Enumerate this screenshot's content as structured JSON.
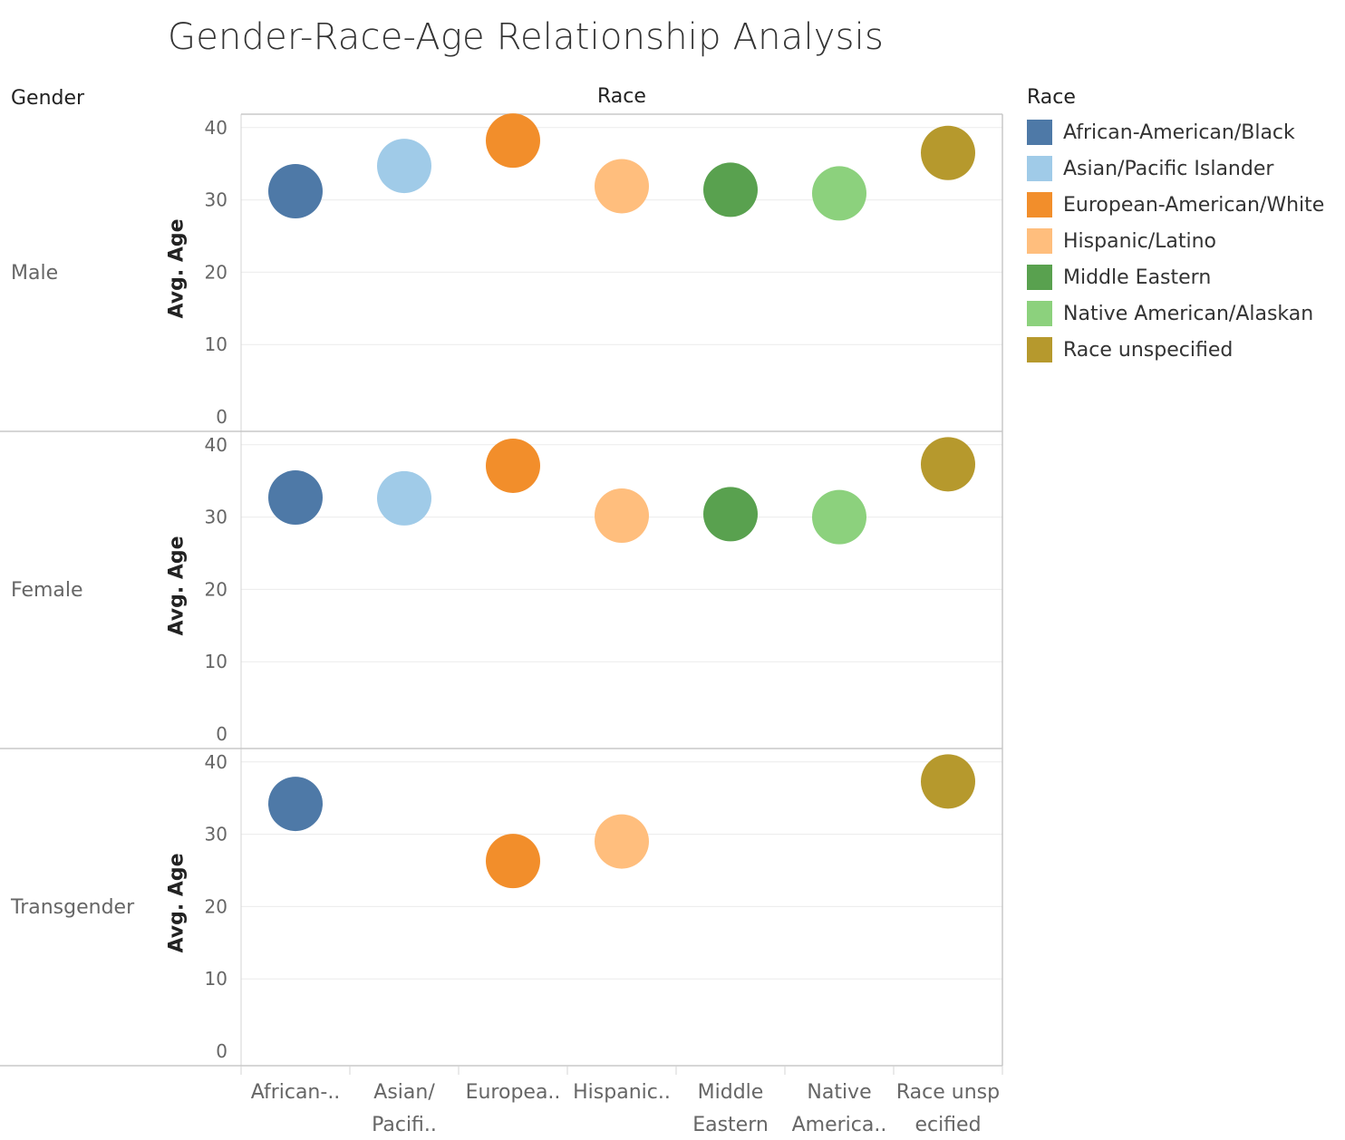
{
  "title": "Gender-Race-Age Relationship Analysis",
  "headers": {
    "rows": "Gender",
    "columns": "Race"
  },
  "legend": {
    "title": "Race",
    "items": [
      {
        "label": "African-American/Black",
        "color": "#4e79a7"
      },
      {
        "label": "Asian/Pacific Islander",
        "color": "#a0cbe8"
      },
      {
        "label": "European-American/White",
        "color": "#f28e2b"
      },
      {
        "label": "Hispanic/Latino",
        "color": "#ffbe7d"
      },
      {
        "label": "Middle Eastern",
        "color": "#59a14f"
      },
      {
        "label": "Native American/Alaskan",
        "color": "#8cd17d"
      },
      {
        "label": "Race unspecified",
        "color": "#b6992d"
      }
    ]
  },
  "chart_data": {
    "type": "scatter",
    "ylabel": "Avg. Age",
    "ylim": [
      0,
      42
    ],
    "yticks": [
      0,
      10,
      20,
      30,
      40
    ],
    "categories": [
      "African-American/Black",
      "Asian/Pacific Islander",
      "European-American/White",
      "Hispanic/Latino",
      "Middle Eastern",
      "Native American/Alaskan",
      "Race unspecified"
    ],
    "category_tick_labels": [
      [
        "African-.."
      ],
      [
        "Asian/",
        "Pacifi.."
      ],
      [
        "Europea.."
      ],
      [
        "Hispanic.."
      ],
      [
        "Middle",
        "Eastern"
      ],
      [
        "Native",
        "America.."
      ],
      [
        "Race unsp",
        "ecified"
      ]
    ],
    "panels": [
      {
        "gender": "Male",
        "values": [
          31.2,
          34.7,
          38.2,
          31.9,
          31.4,
          30.9,
          36.5
        ]
      },
      {
        "gender": "Female",
        "values": [
          32.7,
          32.6,
          37.1,
          30.2,
          30.4,
          30.0,
          37.3
        ]
      },
      {
        "gender": "Transgender",
        "values": [
          34.2,
          null,
          26.3,
          29.0,
          null,
          null,
          37.3
        ]
      }
    ]
  }
}
